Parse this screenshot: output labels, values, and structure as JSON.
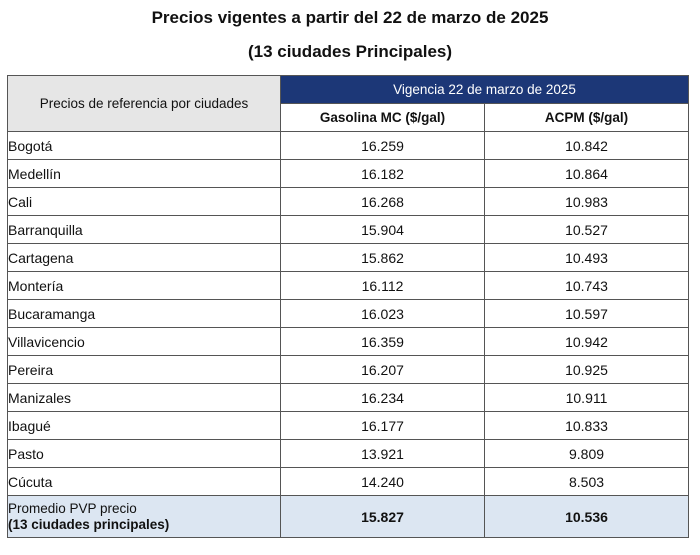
{
  "title_line1": "Precios vigentes a partir del 22 de marzo de 2025",
  "title_line2": "(13 ciudades Principales)",
  "table": {
    "ref_header": "Precios de referencia por ciudades",
    "vigencia_header": "Vigencia 22 de marzo de 2025",
    "col_gasolina": "Gasolina MC ($/gal)",
    "col_acpm": "ACPM ($/gal)",
    "rows": [
      {
        "city": "Bogotá",
        "gasolina": "16.259",
        "acpm": "10.842"
      },
      {
        "city": "Medellín",
        "gasolina": "16.182",
        "acpm": "10.864"
      },
      {
        "city": "Cali",
        "gasolina": "16.268",
        "acpm": "10.983"
      },
      {
        "city": "Barranquilla",
        "gasolina": "15.904",
        "acpm": "10.527"
      },
      {
        "city": "Cartagena",
        "gasolina": "15.862",
        "acpm": "10.493"
      },
      {
        "city": "Montería",
        "gasolina": "16.112",
        "acpm": "10.743"
      },
      {
        "city": "Bucaramanga",
        "gasolina": "16.023",
        "acpm": "10.597"
      },
      {
        "city": "Villavicencio",
        "gasolina": "16.359",
        "acpm": "10.942"
      },
      {
        "city": "Pereira",
        "gasolina": "16.207",
        "acpm": "10.925"
      },
      {
        "city": "Manizales",
        "gasolina": "16.234",
        "acpm": "10.911"
      },
      {
        "city": "Ibagué",
        "gasolina": "16.177",
        "acpm": "10.833"
      },
      {
        "city": "Pasto",
        "gasolina": "13.921",
        "acpm": "9.809"
      },
      {
        "city": "Cúcuta",
        "gasolina": "14.240",
        "acpm": "8.503"
      }
    ],
    "average": {
      "label_line1": "Promedio PVP precio",
      "label_line2": "(13 ciudades principales)",
      "gasolina": "15.827",
      "acpm": "10.536"
    }
  },
  "colors": {
    "header_navy": "#1c3777",
    "header_gray": "#e6e6e6",
    "average_row": "#dce6f2"
  }
}
